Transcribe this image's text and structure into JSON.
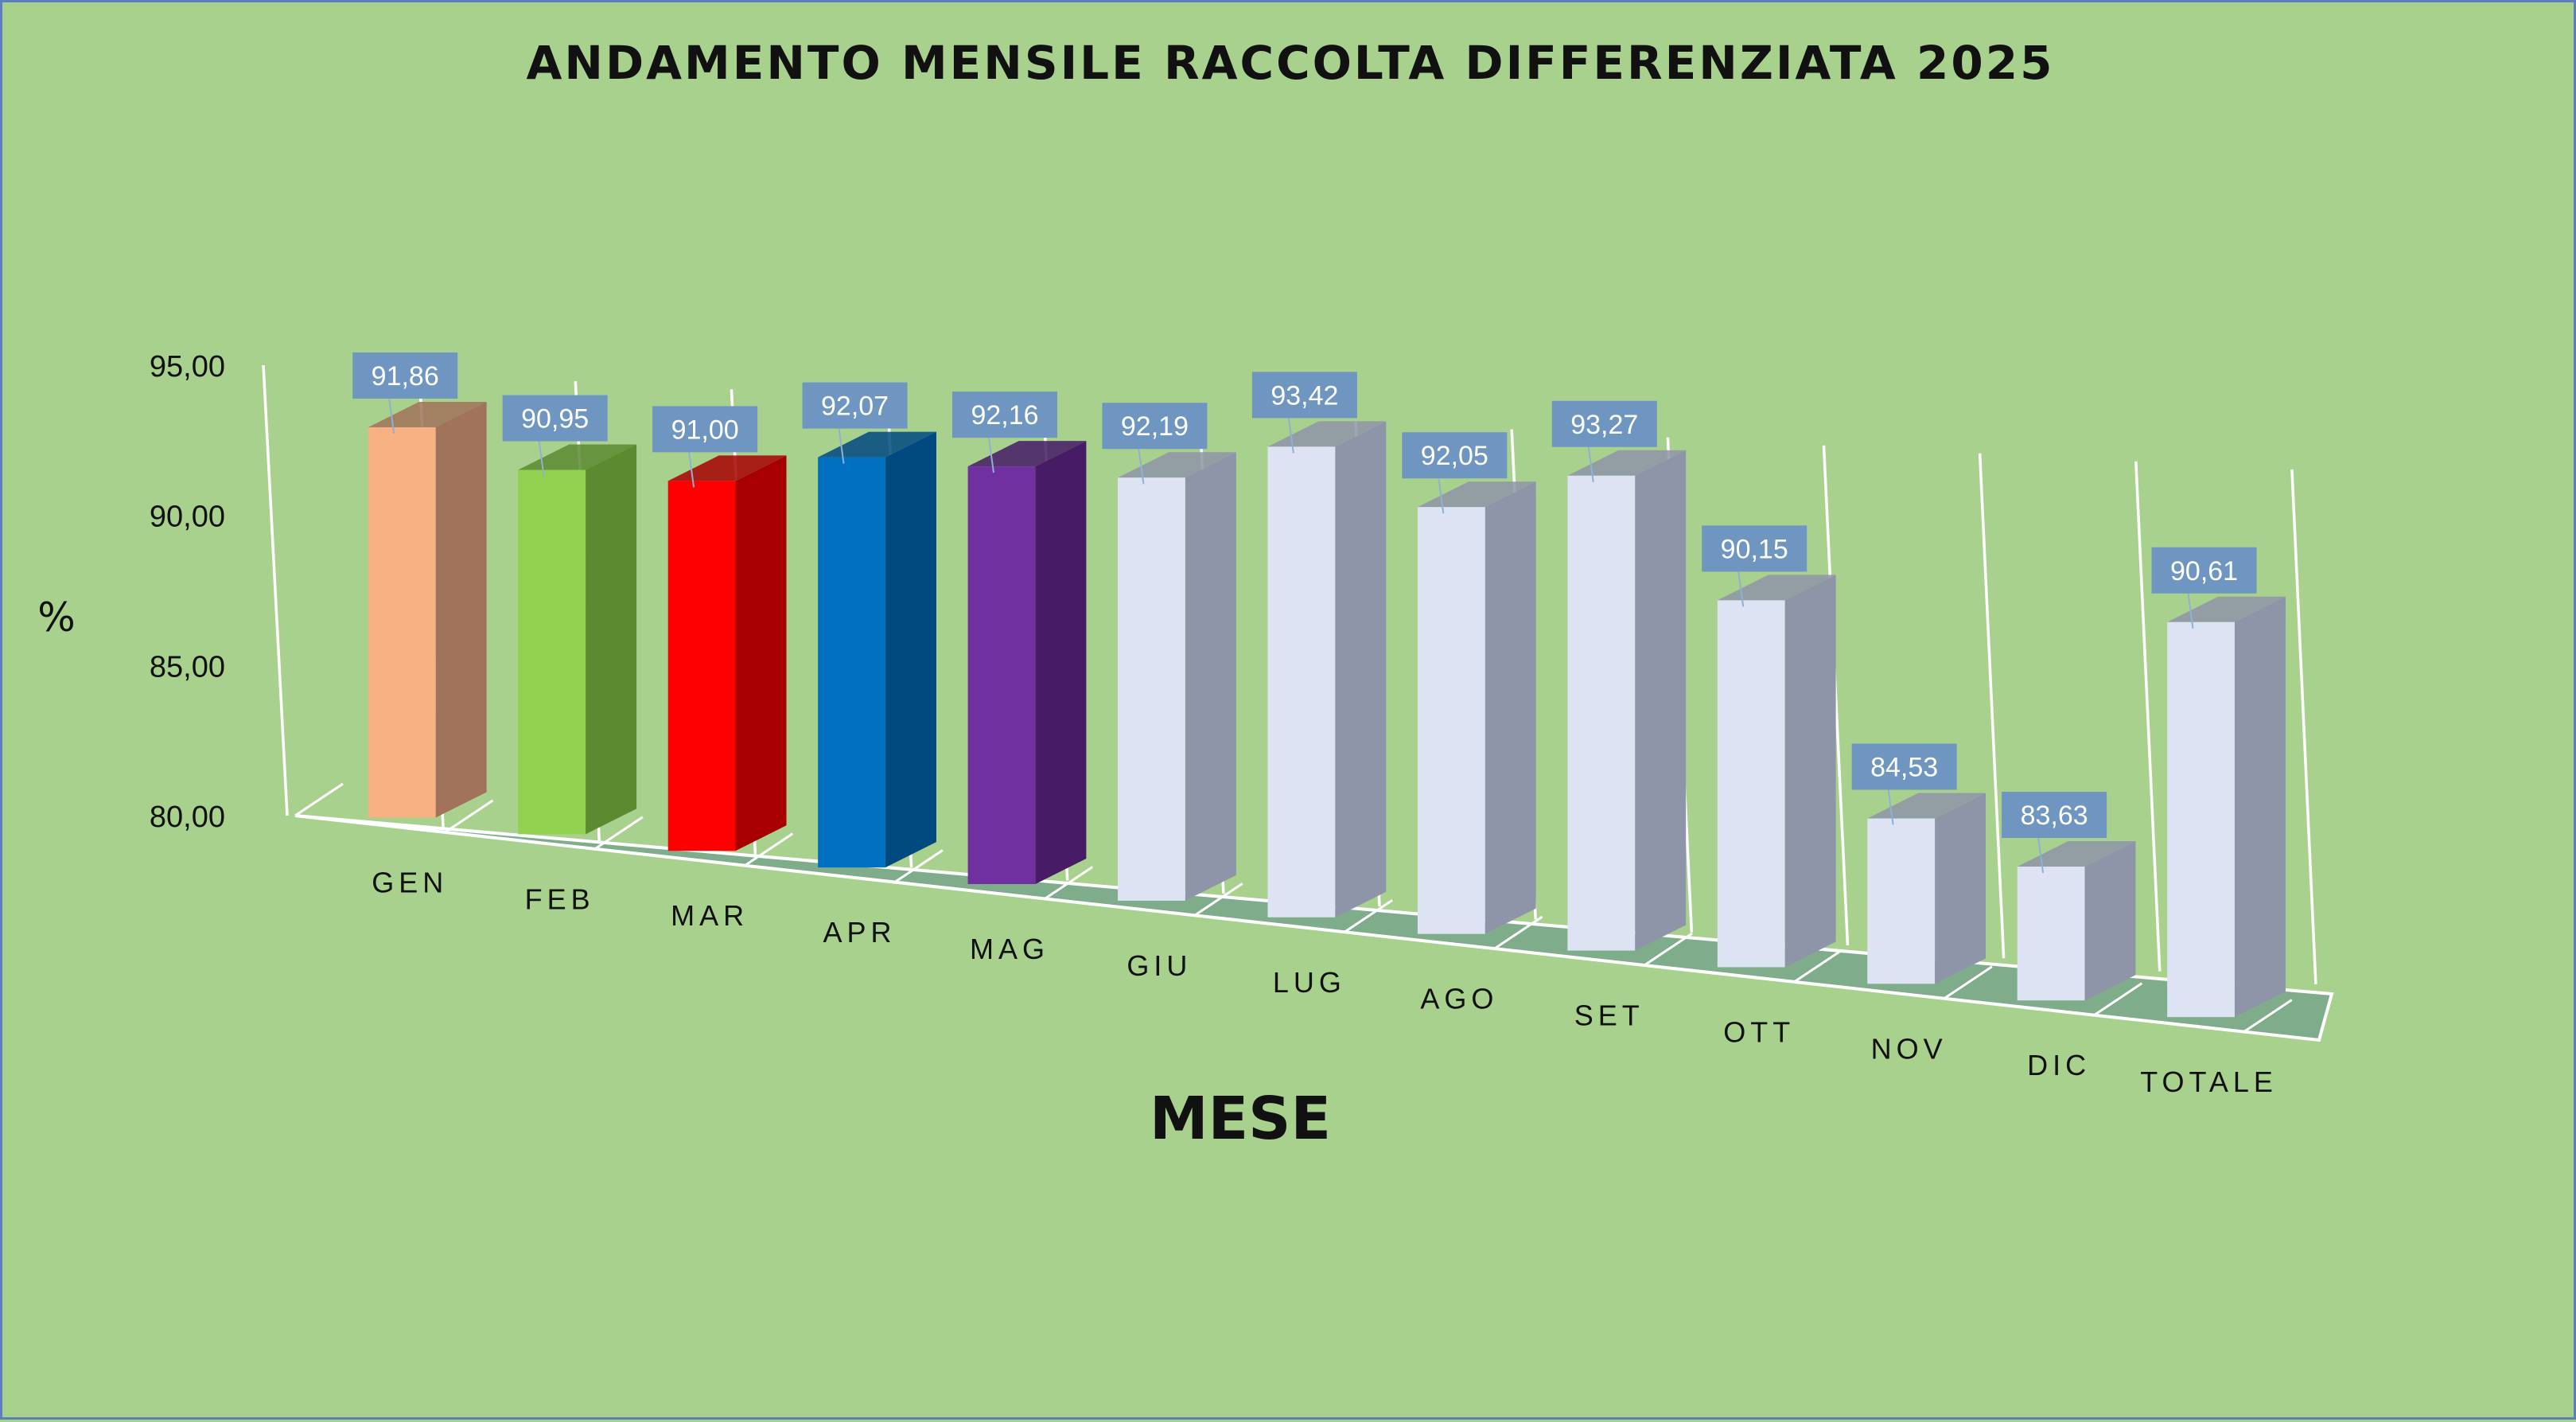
{
  "chart_data": {
    "type": "bar",
    "title": "ANDAMENTO MENSILE RACCOLTA DIFFERENZIATA 2025",
    "xlabel": "MESE",
    "ylabel": "%",
    "ylim": [
      80,
      95
    ],
    "yticks": [
      "80,00",
      "85,00",
      "90,00",
      "95,00"
    ],
    "categories": [
      "GEN",
      "FEB",
      "MAR",
      "APR",
      "MAG",
      "GIU",
      "LUG",
      "AGO",
      "SET",
      "OTT",
      "NOV",
      "DIC",
      "TOTALE"
    ],
    "values": [
      91.86,
      90.95,
      91.0,
      92.07,
      92.16,
      92.19,
      93.42,
      92.05,
      93.27,
      90.15,
      84.53,
      83.63,
      90.61
    ],
    "data_labels": [
      "91,86",
      "90,95",
      "91,00",
      "92,07",
      "92,16",
      "92,19",
      "93,42",
      "92,05",
      "93,27",
      "90,15",
      "84,53",
      "83,63",
      "90,61"
    ],
    "bar_colors": [
      "#f7b183",
      "#92d050",
      "#ff0000",
      "#0070c0",
      "#7030a0",
      "#dde3f3",
      "#dde3f3",
      "#dde3f3",
      "#dde3f3",
      "#dde3f3",
      "#dde3f3",
      "#dde3f3",
      "#dde3f3"
    ],
    "side_colors": [
      "#a0735a",
      "#5c8a30",
      "#a80000",
      "#004a80",
      "#471b66",
      "#8e95a8",
      "#8e95a8",
      "#8e95a8",
      "#8e95a8",
      "#8e95a8",
      "#8e95a8",
      "#8e95a8",
      "#8e95a8"
    ],
    "background_color": "#a9d18e",
    "floor_color": "#7fad8b",
    "label_box_color": "#6e96c0",
    "grid": true,
    "legend": "none"
  }
}
